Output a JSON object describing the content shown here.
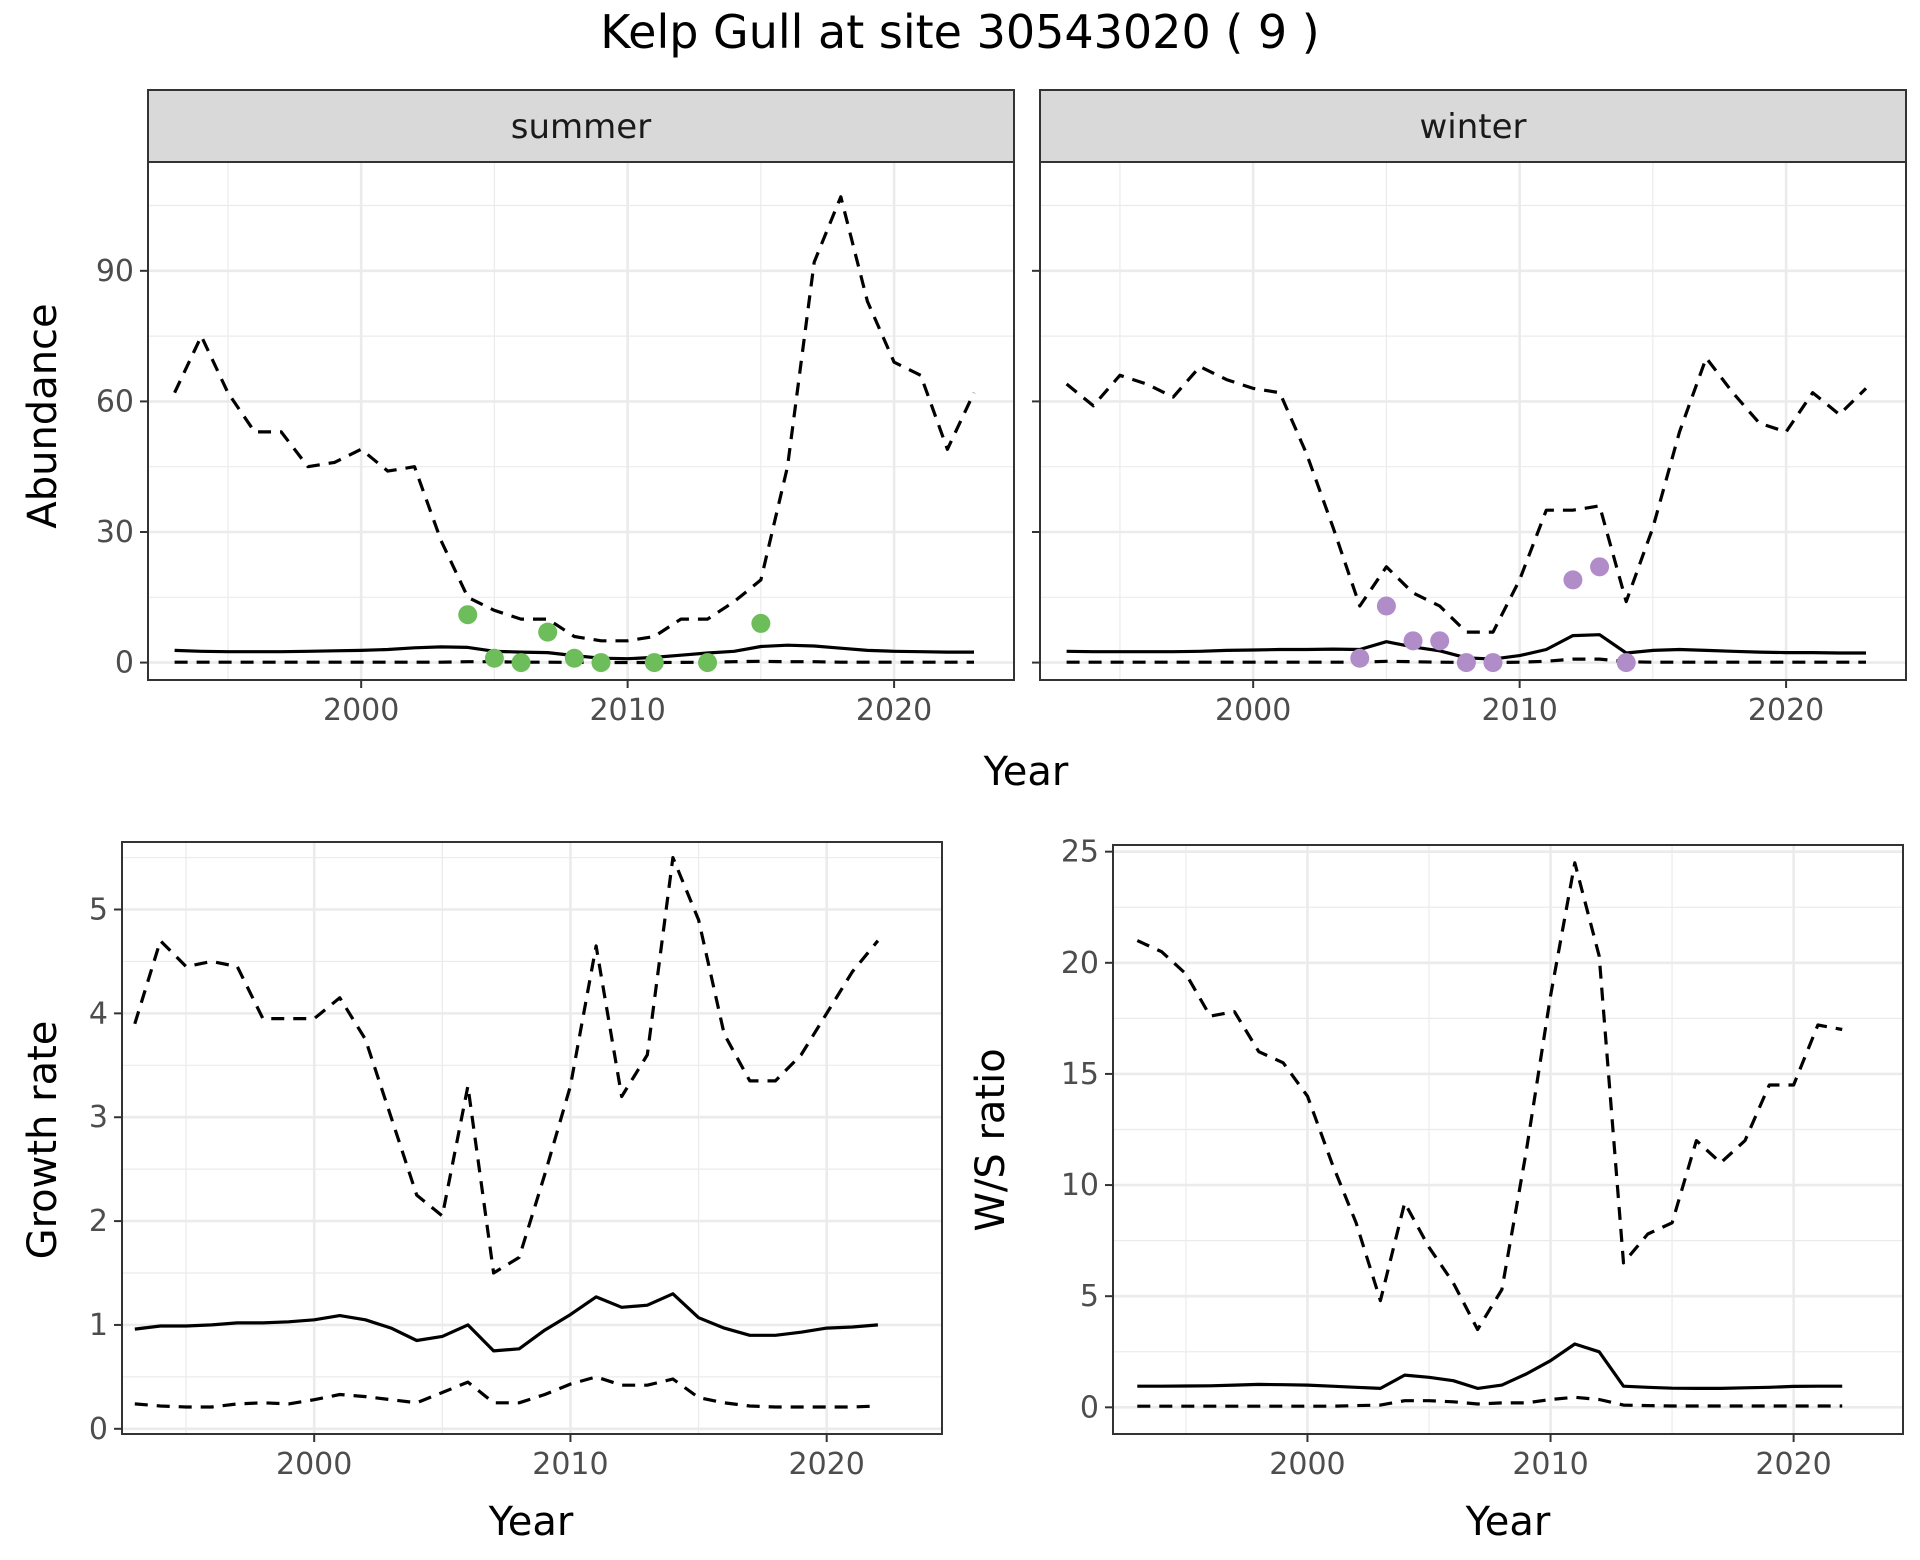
{
  "title": "Kelp Gull at site 30543020 ( 9 )",
  "shared_xlabel": "Year",
  "colors": {
    "summer_points": "#6dbd5a",
    "winter_points": "#b08cc8",
    "lines": "#000000",
    "strip_bg": "#d9d9d9",
    "grid": "#ebebeb"
  },
  "chart_data": [
    {
      "type": "line",
      "facet": "summer",
      "xlabel": "",
      "ylabel": "Abundance",
      "xlim": [
        1992,
        2024.5
      ],
      "ylim": [
        -4,
        115
      ],
      "xticks": [
        2000,
        2010,
        2020
      ],
      "yticks": [
        0,
        30,
        60,
        90
      ],
      "grid": true,
      "series": [
        {
          "role": "upper",
          "style": "dashed",
          "x": [
            1993,
            1994,
            1995,
            1996,
            1997,
            1998,
            1999,
            2000,
            2001,
            2002,
            2003,
            2004,
            2005,
            2006,
            2007,
            2008,
            2009,
            2010,
            2011,
            2012,
            2013,
            2014,
            2015,
            2016,
            2017,
            2018,
            2019,
            2020,
            2021,
            2022,
            2023
          ],
          "values": [
            62,
            75,
            62,
            53,
            53,
            45,
            46,
            49,
            44,
            45,
            28,
            15,
            12,
            10,
            10,
            6,
            5,
            5,
            6,
            10,
            10,
            14,
            19,
            45,
            92,
            107,
            83,
            69,
            66,
            49,
            62
          ]
        },
        {
          "role": "estimate",
          "style": "solid",
          "x": [
            1993,
            1994,
            1995,
            1996,
            1997,
            1998,
            1999,
            2000,
            2001,
            2002,
            2003,
            2004,
            2005,
            2006,
            2007,
            2008,
            2009,
            2010,
            2011,
            2012,
            2013,
            2014,
            2015,
            2016,
            2017,
            2018,
            2019,
            2020,
            2021,
            2022,
            2023
          ],
          "values": [
            2.8,
            2.6,
            2.5,
            2.5,
            2.5,
            2.6,
            2.7,
            2.8,
            3,
            3.4,
            3.6,
            3.5,
            2.6,
            2.4,
            2.3,
            1.6,
            1,
            0.9,
            1.2,
            1.7,
            2.2,
            2.6,
            3.7,
            4,
            3.8,
            3.3,
            2.8,
            2.6,
            2.5,
            2.4,
            2.4
          ]
        },
        {
          "role": "lower",
          "style": "dashed",
          "x": [
            1993,
            1994,
            1995,
            1996,
            1997,
            1998,
            1999,
            2000,
            2001,
            2002,
            2003,
            2004,
            2005,
            2006,
            2007,
            2008,
            2009,
            2010,
            2011,
            2012,
            2013,
            2014,
            2015,
            2016,
            2017,
            2018,
            2019,
            2020,
            2021,
            2022,
            2023
          ],
          "values": [
            0.1,
            0.1,
            0.1,
            0.1,
            0.1,
            0.1,
            0.1,
            0.1,
            0.1,
            0.1,
            0.1,
            0.2,
            0.2,
            0.1,
            0.1,
            0.05,
            0.02,
            0.02,
            0.03,
            0.05,
            0.1,
            0.2,
            0.3,
            0.2,
            0.2,
            0.1,
            0.1,
            0.1,
            0.1,
            0.1,
            0.1
          ]
        }
      ],
      "points": {
        "x": [
          2004,
          2005,
          2006,
          2007,
          2008,
          2009,
          2011,
          2013,
          2015
        ],
        "values": [
          11,
          1,
          0,
          7,
          1,
          0,
          0,
          0,
          9
        ]
      }
    },
    {
      "type": "line",
      "facet": "winter",
      "xlabel": "",
      "ylabel": "",
      "xlim": [
        1992,
        2024.5
      ],
      "ylim": [
        -4,
        115
      ],
      "xticks": [
        2000,
        2010,
        2020
      ],
      "yticks": [
        0,
        30,
        60,
        90
      ],
      "grid": true,
      "series": [
        {
          "role": "upper",
          "style": "dashed",
          "x": [
            1993,
            1994,
            1995,
            1996,
            1997,
            1998,
            1999,
            2000,
            2001,
            2002,
            2003,
            2004,
            2005,
            2006,
            2007,
            2008,
            2009,
            2010,
            2011,
            2012,
            2013,
            2014,
            2015,
            2016,
            2017,
            2018,
            2019,
            2020,
            2021,
            2022,
            2023
          ],
          "values": [
            64,
            59,
            66,
            64,
            61,
            68,
            65,
            63,
            62,
            48,
            31,
            13,
            22,
            16,
            13,
            7,
            7,
            19,
            35,
            35,
            36,
            14,
            31,
            53,
            70,
            62,
            55,
            53,
            62,
            57,
            63
          ]
        },
        {
          "role": "estimate",
          "style": "solid",
          "x": [
            1993,
            1994,
            1995,
            1996,
            1997,
            1998,
            1999,
            2000,
            2001,
            2002,
            2003,
            2004,
            2005,
            2006,
            2007,
            2008,
            2009,
            2010,
            2011,
            2012,
            2013,
            2014,
            2015,
            2016,
            2017,
            2018,
            2019,
            2020,
            2021,
            2022,
            2023
          ],
          "values": [
            2.6,
            2.5,
            2.5,
            2.5,
            2.5,
            2.6,
            2.8,
            2.9,
            3,
            3,
            3.1,
            3,
            4.8,
            3.6,
            2.7,
            1.1,
            0.8,
            1.6,
            3,
            6.2,
            6.4,
            2.2,
            2.8,
            3,
            2.8,
            2.6,
            2.4,
            2.3,
            2.3,
            2.2,
            2.2
          ]
        },
        {
          "role": "lower",
          "style": "dashed",
          "x": [
            1993,
            1994,
            1995,
            1996,
            1997,
            1998,
            1999,
            2000,
            2001,
            2002,
            2003,
            2004,
            2005,
            2006,
            2007,
            2008,
            2009,
            2010,
            2011,
            2012,
            2013,
            2014,
            2015,
            2016,
            2017,
            2018,
            2019,
            2020,
            2021,
            2022,
            2023
          ],
          "values": [
            0.1,
            0.1,
            0.1,
            0.1,
            0.1,
            0.1,
            0.1,
            0.1,
            0.1,
            0.1,
            0.1,
            0.1,
            0.3,
            0.2,
            0.1,
            0.05,
            0.03,
            0.1,
            0.3,
            0.8,
            0.8,
            0.2,
            0.1,
            0.1,
            0.1,
            0.1,
            0.1,
            0.1,
            0.1,
            0.1,
            0.1
          ]
        }
      ],
      "points": {
        "x": [
          2004,
          2005,
          2006,
          2007,
          2008,
          2009,
          2012,
          2013,
          2014
        ],
        "values": [
          1,
          13,
          5,
          5,
          0,
          0,
          19,
          22,
          0
        ]
      }
    },
    {
      "type": "line",
      "xlabel": "Year",
      "ylabel": "Growth rate",
      "xlim": [
        1992.5,
        2024.5
      ],
      "ylim": [
        -0.05,
        5.65
      ],
      "xticks": [
        2000,
        2010,
        2020
      ],
      "yticks": [
        0,
        1,
        2,
        3,
        4,
        5
      ],
      "grid": true,
      "series": [
        {
          "role": "upper",
          "style": "dashed",
          "x": [
            1993,
            1994,
            1995,
            1996,
            1997,
            1998,
            1999,
            2000,
            2001,
            2002,
            2003,
            2004,
            2005,
            2006,
            2007,
            2008,
            2009,
            2010,
            2011,
            2012,
            2013,
            2014,
            2015,
            2016,
            2017,
            2018,
            2019,
            2020,
            2021,
            2022
          ],
          "values": [
            3.9,
            4.7,
            4.45,
            4.5,
            4.45,
            3.95,
            3.95,
            3.95,
            4.15,
            3.75,
            3,
            2.25,
            2.05,
            3.3,
            1.5,
            1.65,
            2.45,
            3.3,
            4.65,
            3.2,
            3.6,
            5.5,
            4.9,
            3.8,
            3.35,
            3.35,
            3.6,
            4,
            4.4,
            4.7
          ]
        },
        {
          "role": "estimate",
          "style": "solid",
          "x": [
            1993,
            1994,
            1995,
            1996,
            1997,
            1998,
            1999,
            2000,
            2001,
            2002,
            2003,
            2004,
            2005,
            2006,
            2007,
            2008,
            2009,
            2010,
            2011,
            2012,
            2013,
            2014,
            2015,
            2016,
            2017,
            2018,
            2019,
            2020,
            2021,
            2022
          ],
          "values": [
            0.96,
            0.99,
            0.99,
            1,
            1.02,
            1.02,
            1.03,
            1.05,
            1.09,
            1.05,
            0.97,
            0.85,
            0.89,
            1,
            0.75,
            0.77,
            0.95,
            1.1,
            1.27,
            1.17,
            1.19,
            1.3,
            1.07,
            0.97,
            0.9,
            0.9,
            0.93,
            0.97,
            0.98,
            1
          ]
        },
        {
          "role": "lower",
          "style": "dashed",
          "x": [
            1993,
            1994,
            1995,
            1996,
            1997,
            1998,
            1999,
            2000,
            2001,
            2002,
            2003,
            2004,
            2005,
            2006,
            2007,
            2008,
            2009,
            2010,
            2011,
            2012,
            2013,
            2014,
            2015,
            2016,
            2017,
            2018,
            2019,
            2020,
            2021,
            2022
          ],
          "values": [
            0.24,
            0.22,
            0.21,
            0.21,
            0.24,
            0.25,
            0.24,
            0.28,
            0.33,
            0.31,
            0.28,
            0.25,
            0.35,
            0.45,
            0.25,
            0.25,
            0.33,
            0.43,
            0.5,
            0.42,
            0.42,
            0.48,
            0.3,
            0.25,
            0.22,
            0.21,
            0.21,
            0.21,
            0.21,
            0.22
          ]
        }
      ]
    },
    {
      "type": "line",
      "xlabel": "Year",
      "ylabel": "W/S ratio",
      "xlim": [
        1992,
        2024.5
      ],
      "ylim": [
        -1.2,
        25.3
      ],
      "xticks": [
        2000,
        2010,
        2020
      ],
      "yticks": [
        0,
        5,
        10,
        15,
        20,
        25
      ],
      "grid": true,
      "series": [
        {
          "role": "upper",
          "style": "dashed",
          "x": [
            1993,
            1994,
            1995,
            1996,
            1997,
            1998,
            1999,
            2000,
            2001,
            2002,
            2003,
            2004,
            2005,
            2006,
            2007,
            2008,
            2009,
            2010,
            2011,
            2012,
            2013,
            2014,
            2015,
            2016,
            2017,
            2018,
            2019,
            2020,
            2021,
            2022
          ],
          "values": [
            21,
            20.5,
            19.5,
            17.6,
            17.8,
            16,
            15.5,
            14,
            11,
            8.3,
            4.8,
            9.2,
            7.2,
            5.6,
            3.5,
            5.3,
            11.5,
            18.5,
            24.5,
            20.3,
            6.5,
            7.8,
            8.3,
            12,
            11,
            12,
            14.5,
            14.5,
            17.2,
            17
          ]
        },
        {
          "role": "estimate",
          "style": "solid",
          "x": [
            1993,
            1994,
            1995,
            1996,
            1997,
            1998,
            1999,
            2000,
            2001,
            2002,
            2003,
            2004,
            2005,
            2006,
            2007,
            2008,
            2009,
            2010,
            2011,
            2012,
            2013,
            2014,
            2015,
            2016,
            2017,
            2018,
            2019,
            2020,
            2021,
            2022
          ],
          "values": [
            0.95,
            0.95,
            0.96,
            0.97,
            1,
            1.03,
            1.02,
            1,
            0.95,
            0.9,
            0.85,
            1.45,
            1.35,
            1.2,
            0.85,
            1,
            1.5,
            2.1,
            2.85,
            2.5,
            0.95,
            0.9,
            0.86,
            0.85,
            0.85,
            0.88,
            0.9,
            0.94,
            0.95,
            0.95
          ]
        },
        {
          "role": "lower",
          "style": "dashed",
          "x": [
            1993,
            1994,
            1995,
            1996,
            1997,
            1998,
            1999,
            2000,
            2001,
            2002,
            2003,
            2004,
            2005,
            2006,
            2007,
            2008,
            2009,
            2010,
            2011,
            2012,
            2013,
            2014,
            2015,
            2016,
            2017,
            2018,
            2019,
            2020,
            2021,
            2022
          ],
          "values": [
            0.05,
            0.05,
            0.05,
            0.05,
            0.05,
            0.05,
            0.05,
            0.05,
            0.05,
            0.08,
            0.1,
            0.3,
            0.3,
            0.25,
            0.15,
            0.2,
            0.2,
            0.35,
            0.45,
            0.35,
            0.1,
            0.08,
            0.06,
            0.06,
            0.06,
            0.06,
            0.06,
            0.06,
            0.06,
            0.06
          ]
        }
      ]
    }
  ]
}
